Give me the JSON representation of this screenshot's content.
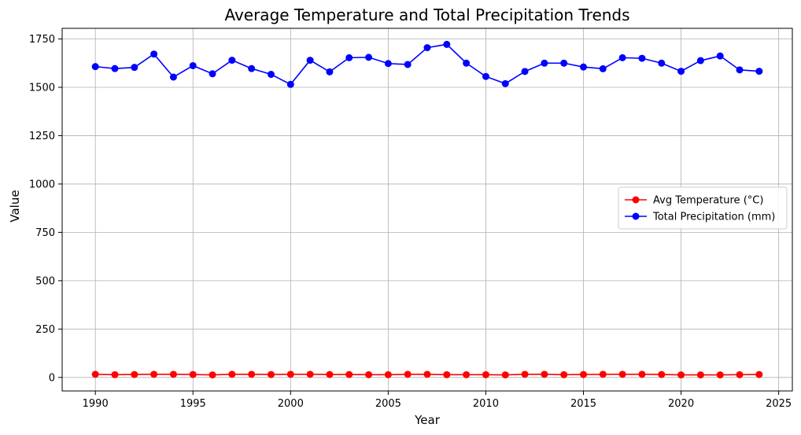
{
  "chart_data": {
    "type": "line",
    "title": "Average Temperature and Total Precipitation Trends",
    "xlabel": "Year",
    "ylabel": "Value",
    "xlim": [
      1988.3,
      2025.7
    ],
    "ylim": [
      -70,
      1805
    ],
    "xticks": [
      1990,
      1995,
      2000,
      2005,
      2010,
      2015,
      2020,
      2025
    ],
    "yticks": [
      0,
      250,
      500,
      750,
      1000,
      1250,
      1500,
      1750
    ],
    "grid": true,
    "legend_position": "center-right",
    "x": [
      1990,
      1991,
      1992,
      1993,
      1994,
      1995,
      1996,
      1997,
      1998,
      1999,
      2000,
      2001,
      2002,
      2003,
      2004,
      2005,
      2006,
      2007,
      2008,
      2009,
      2010,
      2011,
      2012,
      2013,
      2014,
      2015,
      2016,
      2017,
      2018,
      2019,
      2020,
      2021,
      2022,
      2023,
      2024
    ],
    "series": [
      {
        "name": "Avg Temperature (°C)",
        "color": "#ff0000",
        "values": [
          16,
          14,
          15,
          16,
          16,
          15,
          13,
          16,
          16,
          15,
          16,
          16,
          15,
          15,
          14,
          14,
          16,
          16,
          14,
          14,
          14,
          13,
          16,
          16,
          14,
          15,
          16,
          16,
          16,
          15,
          13,
          13,
          13,
          14,
          15
        ]
      },
      {
        "name": "Total Precipitation (mm)",
        "color": "#0000ff",
        "values": [
          1607,
          1597,
          1603,
          1672,
          1553,
          1612,
          1570,
          1640,
          1597,
          1567,
          1515,
          1640,
          1580,
          1653,
          1655,
          1623,
          1618,
          1705,
          1722,
          1625,
          1556,
          1519,
          1582,
          1625,
          1625,
          1605,
          1596,
          1653,
          1650,
          1625,
          1583,
          1638,
          1662,
          1590,
          1583
        ]
      }
    ]
  }
}
